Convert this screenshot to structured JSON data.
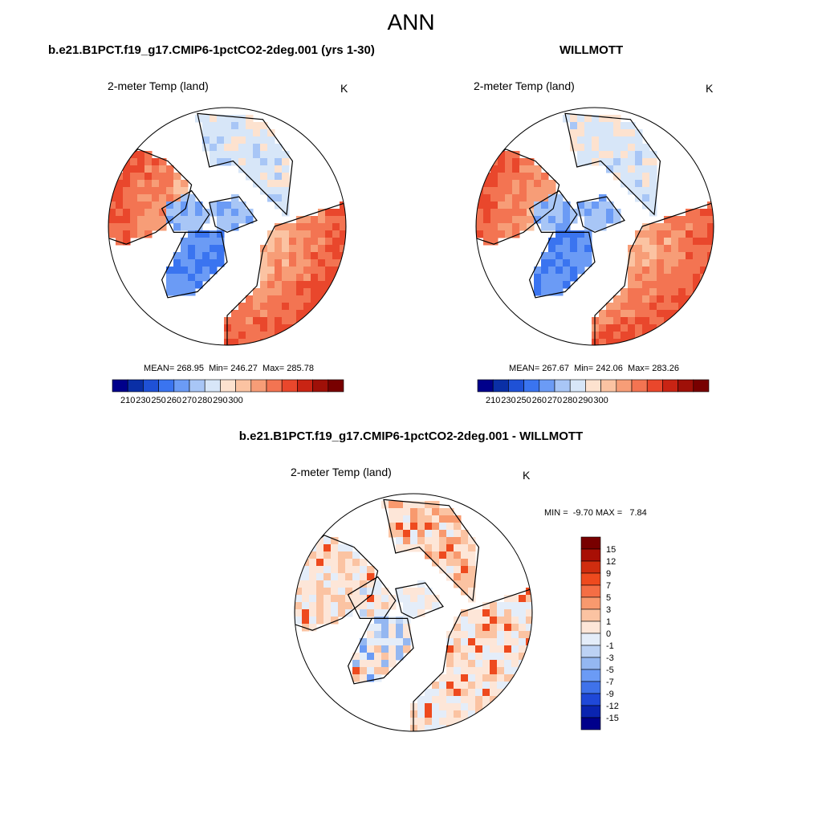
{
  "figure": {
    "title": "ANN",
    "panel_left_title": "b.e21.B1PCT.f19_g17.CMIP6-1pctCO2-2deg.001 (yrs 1-30)",
    "panel_right_title": "WILLMOTT",
    "panel_diff_title": "b.e21.B1PCT.f19_g17.CMIP6-1pctCO2-2deg.001 - WILLMOTT",
    "variable": "2-meter Temp (land)",
    "units": "K"
  },
  "chart_data": [
    {
      "type": "heatmap",
      "projection": "north-polar-stereographic",
      "title": "b.e21.B1PCT.f19_g17.CMIP6-1pctCO2-2deg.001 (yrs 1-30)",
      "variable": "2-meter Temp (land)",
      "units": "K",
      "stats_text": "MEAN= 268.95  Min= 246.27  Max= 285.78",
      "stats": {
        "mean": 268.95,
        "min": 246.27,
        "max": 285.78
      },
      "colorbar_ticks": [
        "210",
        "230",
        "250",
        "260",
        "270",
        "280",
        "290",
        "300"
      ]
    },
    {
      "type": "heatmap",
      "projection": "north-polar-stereographic",
      "title": "WILLMOTT",
      "variable": "2-meter Temp (land)",
      "units": "K",
      "stats_text": "MEAN= 267.67  Min= 242.06  Max= 283.26",
      "stats": {
        "mean": 267.67,
        "min": 242.06,
        "max": 283.26
      },
      "colorbar_ticks": [
        "210",
        "230",
        "250",
        "260",
        "270",
        "280",
        "290",
        "300"
      ]
    },
    {
      "type": "heatmap",
      "projection": "north-polar-stereographic",
      "title": "b.e21.B1PCT.f19_g17.CMIP6-1pctCO2-2deg.001 - WILLMOTT",
      "variable": "2-meter Temp (land)",
      "units": "K",
      "stats_text": "MIN =  -9.70 MAX =   7.84",
      "stats": {
        "min": -9.7,
        "max": 7.84
      },
      "colorbar_ticks": [
        "15",
        "12",
        "9",
        "7",
        "5",
        "3",
        "1",
        "0",
        "-1",
        "-3",
        "-5",
        "-7",
        "-9",
        "-12",
        "-15"
      ]
    }
  ],
  "colors": {
    "abs_scale": [
      "#00008b",
      "#0a2fa6",
      "#1f51d6",
      "#3a74f0",
      "#6b9bf5",
      "#a8c6f6",
      "#d7e6f8",
      "#fde2cf",
      "#fbc3a2",
      "#f79d77",
      "#f37452",
      "#e9472c",
      "#c92414",
      "#9f1008",
      "#780000"
    ],
    "diff_scale": [
      "#780000",
      "#a80f05",
      "#d02d0f",
      "#ee4a1e",
      "#f46e45",
      "#f8996e",
      "#fbc3a2",
      "#fde6d8",
      "#e4edf9",
      "#bcd2f4",
      "#94b7f1",
      "#6b9bf5",
      "#3f72ea",
      "#1f48d8",
      "#0a24b0",
      "#00008b"
    ]
  }
}
